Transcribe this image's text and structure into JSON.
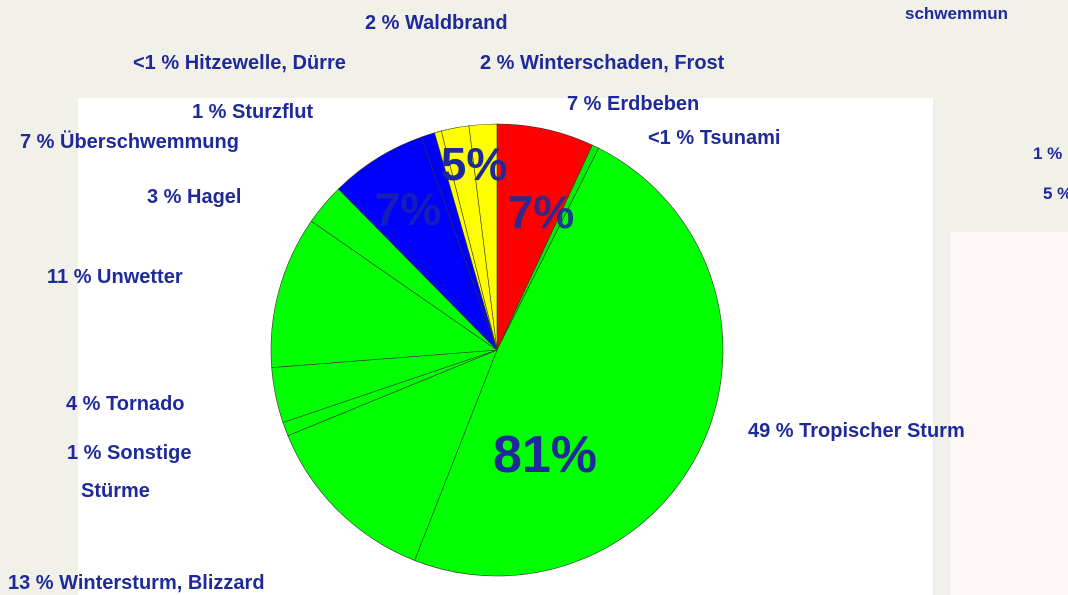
{
  "chart_data": {
    "type": "pie",
    "slices": [
      {
        "label": "7 % Erdbeben",
        "value": 7,
        "color": "#ff0000"
      },
      {
        "label": "<1 % Tsunami",
        "value": 0.5,
        "color": "#00ee00"
      },
      {
        "label": "49 % Tropischer Sturm",
        "value": 49,
        "color": "#00ff00"
      },
      {
        "label": "13 % Wintersturm, Blizzard",
        "value": 13,
        "color": "#00ff00"
      },
      {
        "label": [
          "1 % Sonstige",
          "Stürme"
        ],
        "value": 1,
        "color": "#00ff00"
      },
      {
        "label": "4 % Tornado",
        "value": 4,
        "color": "#00ff00"
      },
      {
        "label": "11 % Unwetter",
        "value": 11,
        "color": "#00ff00"
      },
      {
        "label": "3 % Hagel",
        "value": 3,
        "color": "#00ff00"
      },
      {
        "label": "7 % Überschwemmung",
        "value": 7,
        "color": "#0000ff"
      },
      {
        "label": "1 % Sturzflut",
        "value": 1,
        "color": "#0000ff"
      },
      {
        "label": "<1 % Hitzewelle, Dürre",
        "value": 0.5,
        "color": "#ffff00"
      },
      {
        "label": "2 % Waldbrand",
        "value": 2,
        "color": "#ffff00"
      },
      {
        "label": "2 % Winterschaden, Frost",
        "value": 2,
        "color": "#ffff00"
      }
    ],
    "group_labels": [
      "5%",
      "7%",
      "7%",
      "81%"
    ],
    "cropped_labels": [
      "schwemmun",
      "1 %",
      "5 %"
    ]
  }
}
